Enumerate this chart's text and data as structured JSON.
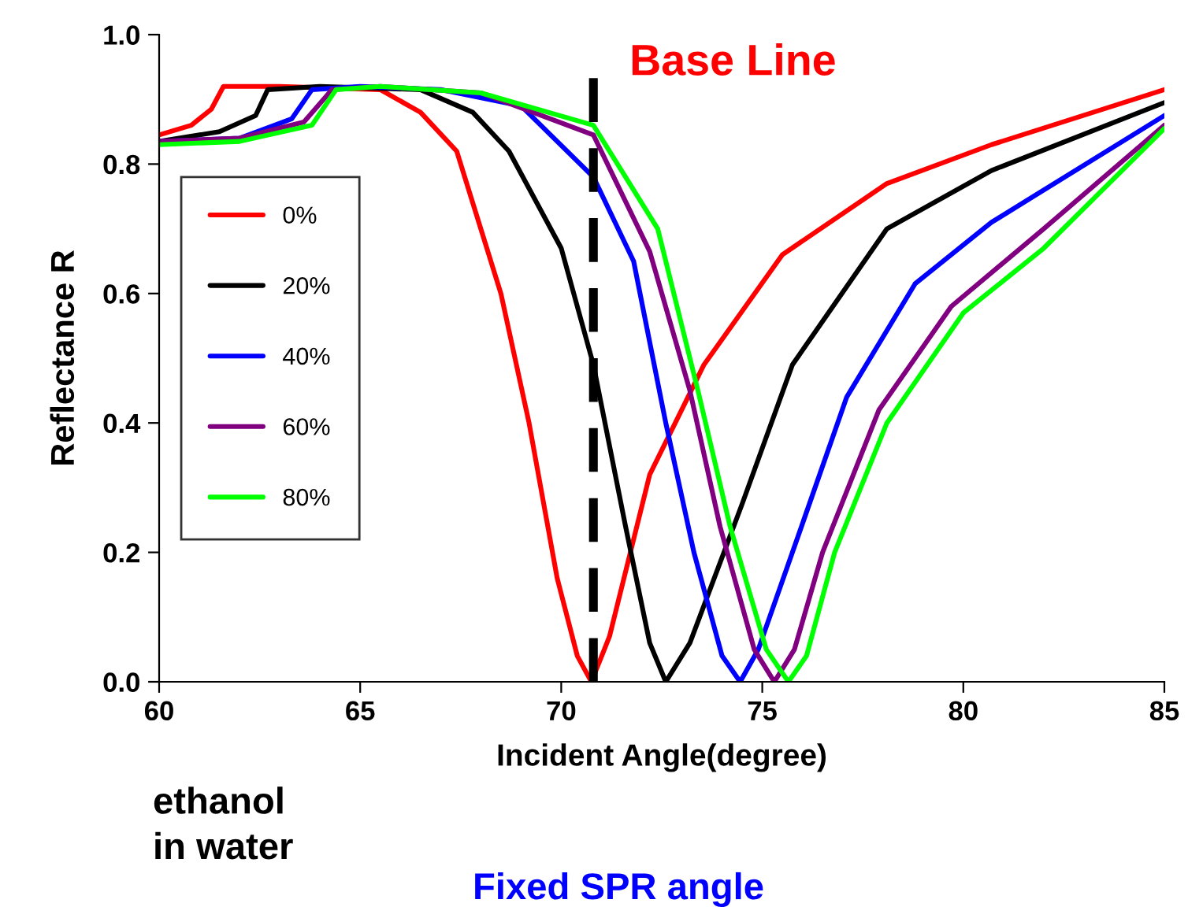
{
  "chart_data": {
    "type": "line",
    "xlabel": "Incident Angle(degree)",
    "ylabel": "Reflectance R",
    "xlim": [
      60,
      85
    ],
    "ylim": [
      0,
      1.0
    ],
    "xticks": [
      60,
      65,
      70,
      75,
      80,
      85
    ],
    "yticks": [
      {
        "value": 0,
        "label": "0.0"
      },
      {
        "value": 0.2,
        "label": "0.2"
      },
      {
        "value": 0.4,
        "label": "0.4"
      },
      {
        "value": 0.6,
        "label": "0.6"
      },
      {
        "value": 0.8,
        "label": "0.8"
      },
      {
        "value": 1.0,
        "label": "1.0"
      }
    ],
    "grid": false,
    "legend": "left",
    "marker": "none",
    "line_style": "solid",
    "series": [
      {
        "name": "0%",
        "color": "#ff0000",
        "x": [
          60,
          60.8,
          61.3,
          61.6,
          63,
          65.5,
          66.5,
          67.4,
          68.5,
          69.2,
          69.9,
          70.4,
          70.75,
          71.2,
          72.2,
          73.55,
          75.5,
          78.1,
          80.7,
          85
        ],
        "values": [
          0.845,
          0.86,
          0.885,
          0.92,
          0.92,
          0.915,
          0.88,
          0.82,
          0.6,
          0.4,
          0.16,
          0.04,
          0,
          0.07,
          0.32,
          0.49,
          0.66,
          0.77,
          0.83,
          0.915
        ]
      },
      {
        "name": "20%",
        "color": "#000000",
        "x": [
          60,
          61.5,
          62.4,
          62.7,
          64,
          66.5,
          67.8,
          68.7,
          70.0,
          70.8,
          71.6,
          72.2,
          72.6,
          73.2,
          74.5,
          75.75,
          78.1,
          80.7,
          85
        ],
        "values": [
          0.835,
          0.85,
          0.875,
          0.915,
          0.92,
          0.915,
          0.88,
          0.82,
          0.67,
          0.49,
          0.24,
          0.06,
          0,
          0.06,
          0.275,
          0.49,
          0.7,
          0.79,
          0.895
        ]
      },
      {
        "name": "40%",
        "color": "#0000ff",
        "x": [
          60,
          62,
          63.3,
          63.8,
          65,
          67,
          69.0,
          70.8,
          71.8,
          72.6,
          73.3,
          74.0,
          74.45,
          74.9,
          75.75,
          77.1,
          78.8,
          80.7,
          85
        ],
        "values": [
          0.835,
          0.84,
          0.87,
          0.915,
          0.92,
          0.915,
          0.89,
          0.78,
          0.65,
          0.4,
          0.2,
          0.04,
          0,
          0.05,
          0.2,
          0.44,
          0.615,
          0.71,
          0.875
        ]
      },
      {
        "name": "60%",
        "color": "#800080",
        "x": [
          60,
          62,
          63.6,
          64.3,
          65.5,
          68,
          70.8,
          72.2,
          73.2,
          73.95,
          74.8,
          75.3,
          75.8,
          76.5,
          77.9,
          79.7,
          82,
          85
        ],
        "values": [
          0.835,
          0.84,
          0.865,
          0.915,
          0.92,
          0.91,
          0.845,
          0.665,
          0.45,
          0.24,
          0.05,
          0,
          0.05,
          0.2,
          0.42,
          0.58,
          0.7,
          0.86
        ]
      },
      {
        "name": "80%",
        "color": "#00ff00",
        "x": [
          60,
          62,
          63.8,
          64.4,
          65.5,
          68,
          70.8,
          72.4,
          73.4,
          74.2,
          75.1,
          75.65,
          76.1,
          76.8,
          78.1,
          80,
          82,
          85
        ],
        "values": [
          0.83,
          0.835,
          0.86,
          0.915,
          0.92,
          0.91,
          0.86,
          0.7,
          0.45,
          0.24,
          0.05,
          0,
          0.04,
          0.2,
          0.4,
          0.57,
          0.67,
          0.855
        ]
      }
    ],
    "ref_lines": [
      {
        "axis": "x",
        "value": 70.8,
        "label": "Base Line",
        "color": "#000000",
        "line_style": "dashed"
      }
    ],
    "annotations": [
      "ethanol\nin water",
      "Fixed SPR angle"
    ]
  }
}
